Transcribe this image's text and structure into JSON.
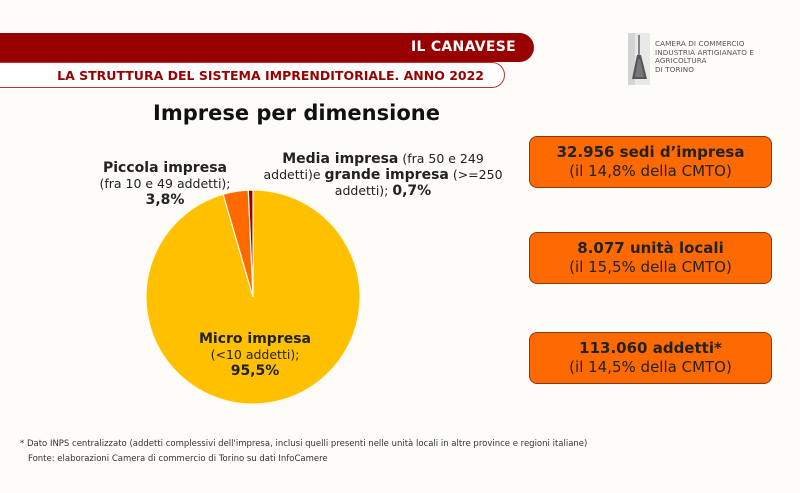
{
  "header": {
    "region": "IL CANAVESE",
    "subtitle": "LA STRUTTURA DEL SISTEMA IMPRENDITORIALE. ANNO 2022"
  },
  "logo": {
    "icon": "mole-antonelliana-icon",
    "lines": [
      "CAMERA DI COMMERCIO",
      "INDUSTRIA ARTIGIANATO E AGRICOLTURA",
      "DI TORINO"
    ]
  },
  "colors": {
    "header_red": "#990000",
    "micro": "#ffc000",
    "piccola": "#ff6a00",
    "media_grande": "#990000",
    "box_fill": "#ff6a00"
  },
  "chart_data": {
    "type": "pie",
    "title": "Imprese per dimensione",
    "categories": [
      "Micro impresa (<10 addetti)",
      "Piccola impresa (fra 10 e 49 addetti)",
      "Media impresa (fra 50 e 249 addetti) e grande impresa (>=250 addetti)"
    ],
    "values": [
      95.5,
      3.8,
      0.7
    ],
    "unit": "%",
    "labels": {
      "micro": {
        "name": "Micro impresa",
        "desc": "(<10 addetti);",
        "value": "95,5%"
      },
      "piccola": {
        "name": "Piccola impresa",
        "desc": "(fra 10 e 49 addetti);",
        "value": "3,8%"
      },
      "media": {
        "name": "Media impresa",
        "desc1": " (fra 50 e 249",
        "desc2": "addetti)e ",
        "name2": "grande impresa",
        "desc3": " (>=250",
        "desc4": "addetti); ",
        "value": "0,7%"
      }
    }
  },
  "kpis": [
    {
      "line1": "32.956 sedi d’impresa",
      "line2": "(il 14,8% della CMTO)"
    },
    {
      "line1": "8.077 unità locali",
      "line2": "(il 15,5% della CMTO)"
    },
    {
      "line1": "113.060 addetti*",
      "line2": "(il 14,5% della CMTO)"
    }
  ],
  "footnotes": {
    "note": "* Dato INPS centralizzato (addetti complessivi dell'impresa, inclusi quelli presenti nelle unità locali in altre province e regioni italiane)",
    "source": "Fonte: elaborazioni Camera di commercio di Torino su dati InfoCamere"
  }
}
